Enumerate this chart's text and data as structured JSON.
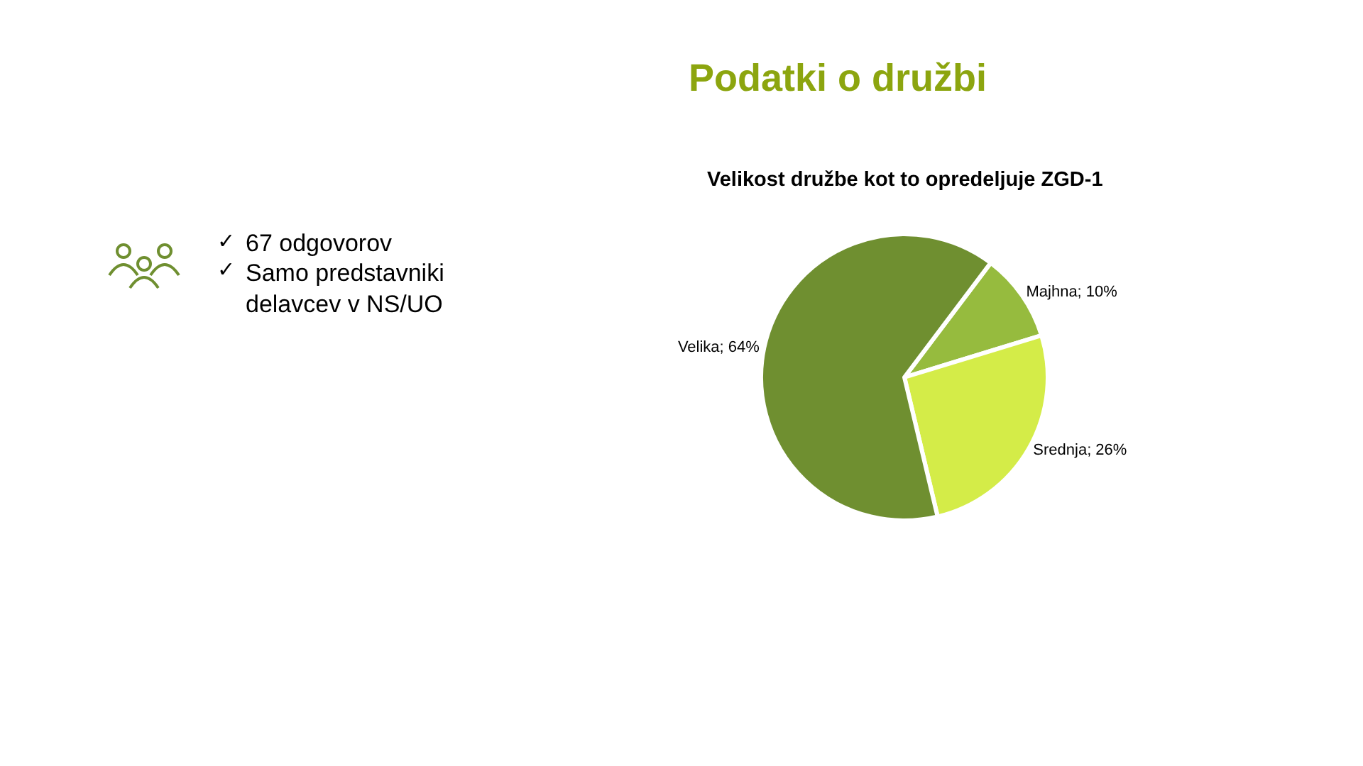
{
  "chart_data": {
    "type": "pie",
    "title": "Podatki o družbi",
    "subtitle": "Velikost družbe kot to opredeljuje ZGD-1",
    "categories": [
      "Majhna",
      "Srednja",
      "Velika"
    ],
    "values": [
      10,
      26,
      64
    ],
    "colors": [
      "#96bb3e",
      "#d4ec48",
      "#6f8f30"
    ],
    "value_labels": [
      "10%",
      "26%",
      "64%"
    ],
    "annotations": [
      "✓ 67 odgovorov",
      "✓ Samo predstavniki delavcev v NS/UO"
    ],
    "legend": false
  }
}
